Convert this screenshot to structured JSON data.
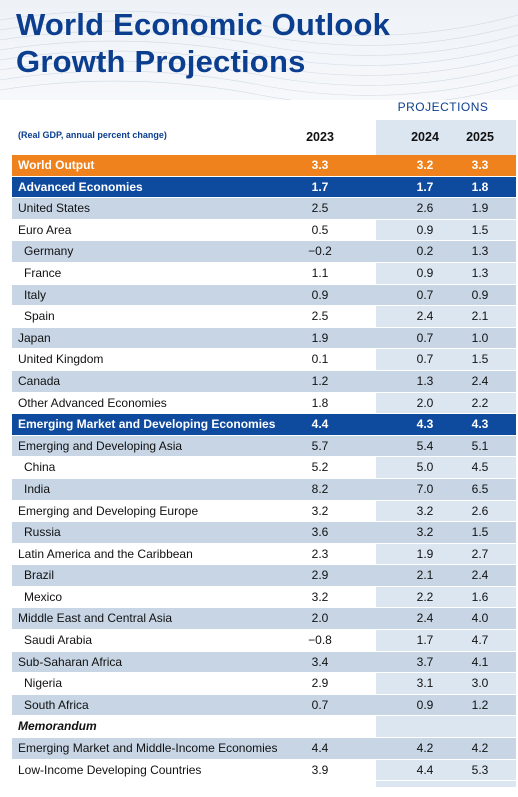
{
  "title_line1": "World Economic Outlook",
  "title_line2": "Growth Projections",
  "projections_label": "PROJECTIONS",
  "subtitle": "(Real GDP, annual percent change)",
  "years": [
    "2023",
    "2024",
    "2025"
  ],
  "colors": {
    "title": "#0b3e8f",
    "world_output_row": "#f0821e",
    "group_row": "#0e4a9e",
    "shaded_row": "#c7d5e5",
    "projection_column": "#dce6f0"
  },
  "chart_data": {
    "type": "table",
    "title": "World Economic Outlook Growth Projections",
    "columns": [
      "2023",
      "2024",
      "2025"
    ],
    "rows": [
      {
        "label": "World Output",
        "values": [
          "3.3",
          "3.2",
          "3.3"
        ],
        "style": "orange"
      },
      {
        "label": "Advanced Economies",
        "values": [
          "1.7",
          "1.7",
          "1.8"
        ],
        "style": "blue"
      },
      {
        "label": "United States",
        "values": [
          "2.5",
          "2.6",
          "1.9"
        ],
        "style": "light"
      },
      {
        "label": "Euro Area",
        "values": [
          "0.5",
          "0.9",
          "1.5"
        ],
        "style": "white"
      },
      {
        "label": "Germany",
        "values": [
          "−0.2",
          "0.2",
          "1.3"
        ],
        "style": "light",
        "indent": true
      },
      {
        "label": "France",
        "values": [
          "1.1",
          "0.9",
          "1.3"
        ],
        "style": "white",
        "indent": true
      },
      {
        "label": "Italy",
        "values": [
          "0.9",
          "0.7",
          "0.9"
        ],
        "style": "light",
        "indent": true
      },
      {
        "label": "Spain",
        "values": [
          "2.5",
          "2.4",
          "2.1"
        ],
        "style": "white",
        "indent": true
      },
      {
        "label": "Japan",
        "values": [
          "1.9",
          "0.7",
          "1.0"
        ],
        "style": "light"
      },
      {
        "label": "United Kingdom",
        "values": [
          "0.1",
          "0.7",
          "1.5"
        ],
        "style": "white"
      },
      {
        "label": "Canada",
        "values": [
          "1.2",
          "1.3",
          "2.4"
        ],
        "style": "light"
      },
      {
        "label": "Other Advanced Economies",
        "values": [
          "1.8",
          "2.0",
          "2.2"
        ],
        "style": "white"
      },
      {
        "label": "Emerging Market and Developing Economies",
        "values": [
          "4.4",
          "4.3",
          "4.3"
        ],
        "style": "blue"
      },
      {
        "label": "Emerging and Developing Asia",
        "values": [
          "5.7",
          "5.4",
          "5.1"
        ],
        "style": "light"
      },
      {
        "label": "China",
        "values": [
          "5.2",
          "5.0",
          "4.5"
        ],
        "style": "white",
        "indent": true
      },
      {
        "label": "India",
        "values": [
          "8.2",
          "7.0",
          "6.5"
        ],
        "style": "light",
        "indent": true
      },
      {
        "label": "Emerging and Developing Europe",
        "values": [
          "3.2",
          "3.2",
          "2.6"
        ],
        "style": "white"
      },
      {
        "label": "Russia",
        "values": [
          "3.6",
          "3.2",
          "1.5"
        ],
        "style": "light",
        "indent": true
      },
      {
        "label": "Latin America and the Caribbean",
        "values": [
          "2.3",
          "1.9",
          "2.7"
        ],
        "style": "white"
      },
      {
        "label": "Brazil",
        "values": [
          "2.9",
          "2.1",
          "2.4"
        ],
        "style": "light",
        "indent": true
      },
      {
        "label": "Mexico",
        "values": [
          "3.2",
          "2.2",
          "1.6"
        ],
        "style": "white",
        "indent": true
      },
      {
        "label": "Middle East and Central Asia",
        "values": [
          "2.0",
          "2.4",
          "4.0"
        ],
        "style": "light"
      },
      {
        "label": "Saudi Arabia",
        "values": [
          "−0.8",
          "1.7",
          "4.7"
        ],
        "style": "white",
        "indent": true
      },
      {
        "label": "Sub-Saharan Africa",
        "values": [
          "3.4",
          "3.7",
          "4.1"
        ],
        "style": "light"
      },
      {
        "label": "Nigeria",
        "values": [
          "2.9",
          "3.1",
          "3.0"
        ],
        "style": "white",
        "indent": true
      },
      {
        "label": "South Africa",
        "values": [
          "0.7",
          "0.9",
          "1.2"
        ],
        "style": "light",
        "indent": true
      },
      {
        "label": "Memorandum",
        "values": [
          "",
          "",
          ""
        ],
        "style": "white",
        "memo": true
      },
      {
        "label": "Emerging Market and Middle-Income Economies",
        "values": [
          "4.4",
          "4.2",
          "4.2"
        ],
        "style": "light"
      },
      {
        "label": "Low-Income Developing Countries",
        "values": [
          "3.9",
          "4.4",
          "5.3"
        ],
        "style": "white"
      }
    ]
  }
}
